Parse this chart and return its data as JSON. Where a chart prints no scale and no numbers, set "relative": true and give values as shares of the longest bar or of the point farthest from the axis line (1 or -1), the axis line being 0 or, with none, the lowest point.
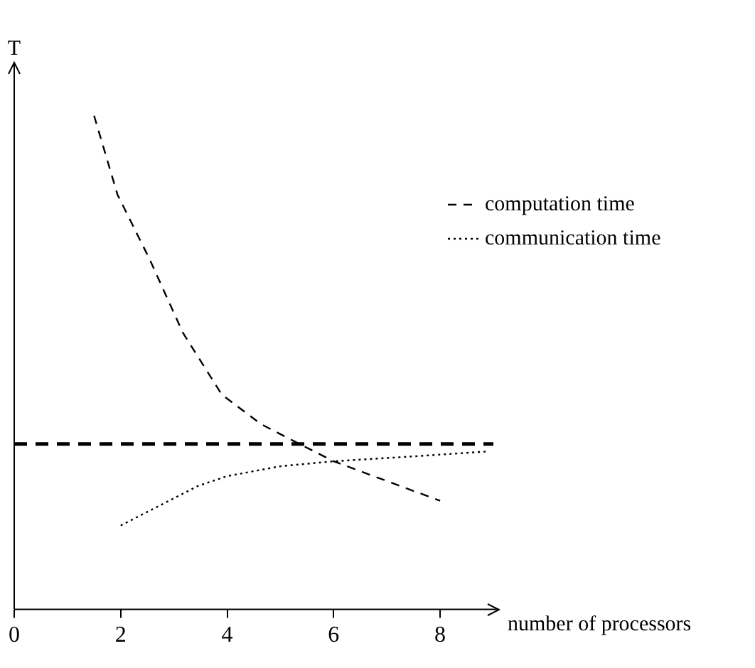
{
  "chart_data": {
    "type": "line",
    "relative": true,
    "ylabel": "T",
    "xlabel": "number of processors",
    "xlim": [
      0,
      9
    ],
    "xticks": [
      0,
      2,
      4,
      6,
      8
    ],
    "grid": false,
    "legend": "right",
    "marker": "none",
    "series": [
      {
        "name": "computation time",
        "color": "#000000",
        "line_style": "dashed",
        "x": [
          1.5,
          1.94,
          2.54,
          3.17,
          3.9,
          4.64,
          5.27,
          6,
          7,
          8
        ],
        "values": [
          1,
          0.84,
          0.71,
          0.56,
          0.435,
          0.375,
          0.34,
          0.3,
          0.26,
          0.22
        ]
      },
      {
        "name": "communication time",
        "color": "#000000",
        "line_style": "dotted",
        "x": [
          2,
          3.45,
          4,
          5,
          6,
          7.5,
          8.9
        ],
        "values": [
          0.17,
          0.25,
          0.27,
          0.29,
          0.3,
          0.31,
          0.32
        ]
      }
    ],
    "ref_lines": [
      {
        "axis": "y",
        "value": 0.335,
        "line_style": "dashed",
        "color": "#000000"
      }
    ]
  }
}
